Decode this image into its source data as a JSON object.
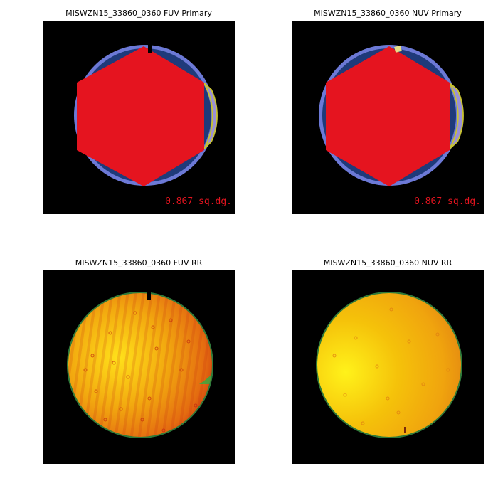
{
  "panels": [
    {
      "id": "fuv-primary",
      "title": "MISWZN15_33860_0360 FUV Primary",
      "area_label": "0.867 sq.dg."
    },
    {
      "id": "nuv-primary",
      "title": "MISWZN15_33860_0360 NUV Primary",
      "area_label": "0.867 sq.dg."
    },
    {
      "id": "fuv-rr",
      "title": "MISWZN15_33860_0360 FUV RR"
    },
    {
      "id": "nuv-rr",
      "title": "MISWZN15_33860_0360 NUV RR"
    }
  ],
  "colors": {
    "background": "#000000",
    "circle_fill": "#1f3a7a",
    "circle_edge": "#6c79d6",
    "hexagon": "#e5141f",
    "edge_strip": "#9a8fd8",
    "edge_strip_outline": "#c7c232",
    "nuv_marker": "#e7e08a",
    "area_label": "#e5141f",
    "rr_edge": "#2f7a3a",
    "fuv_rr_warm": "#f2a90f",
    "fuv_rr_hot": "#c2250f",
    "fuv_rr_green": "#2fae44",
    "nuv_rr_warm": "#f5c20a",
    "nuv_rr_hot": "#e07f12"
  }
}
